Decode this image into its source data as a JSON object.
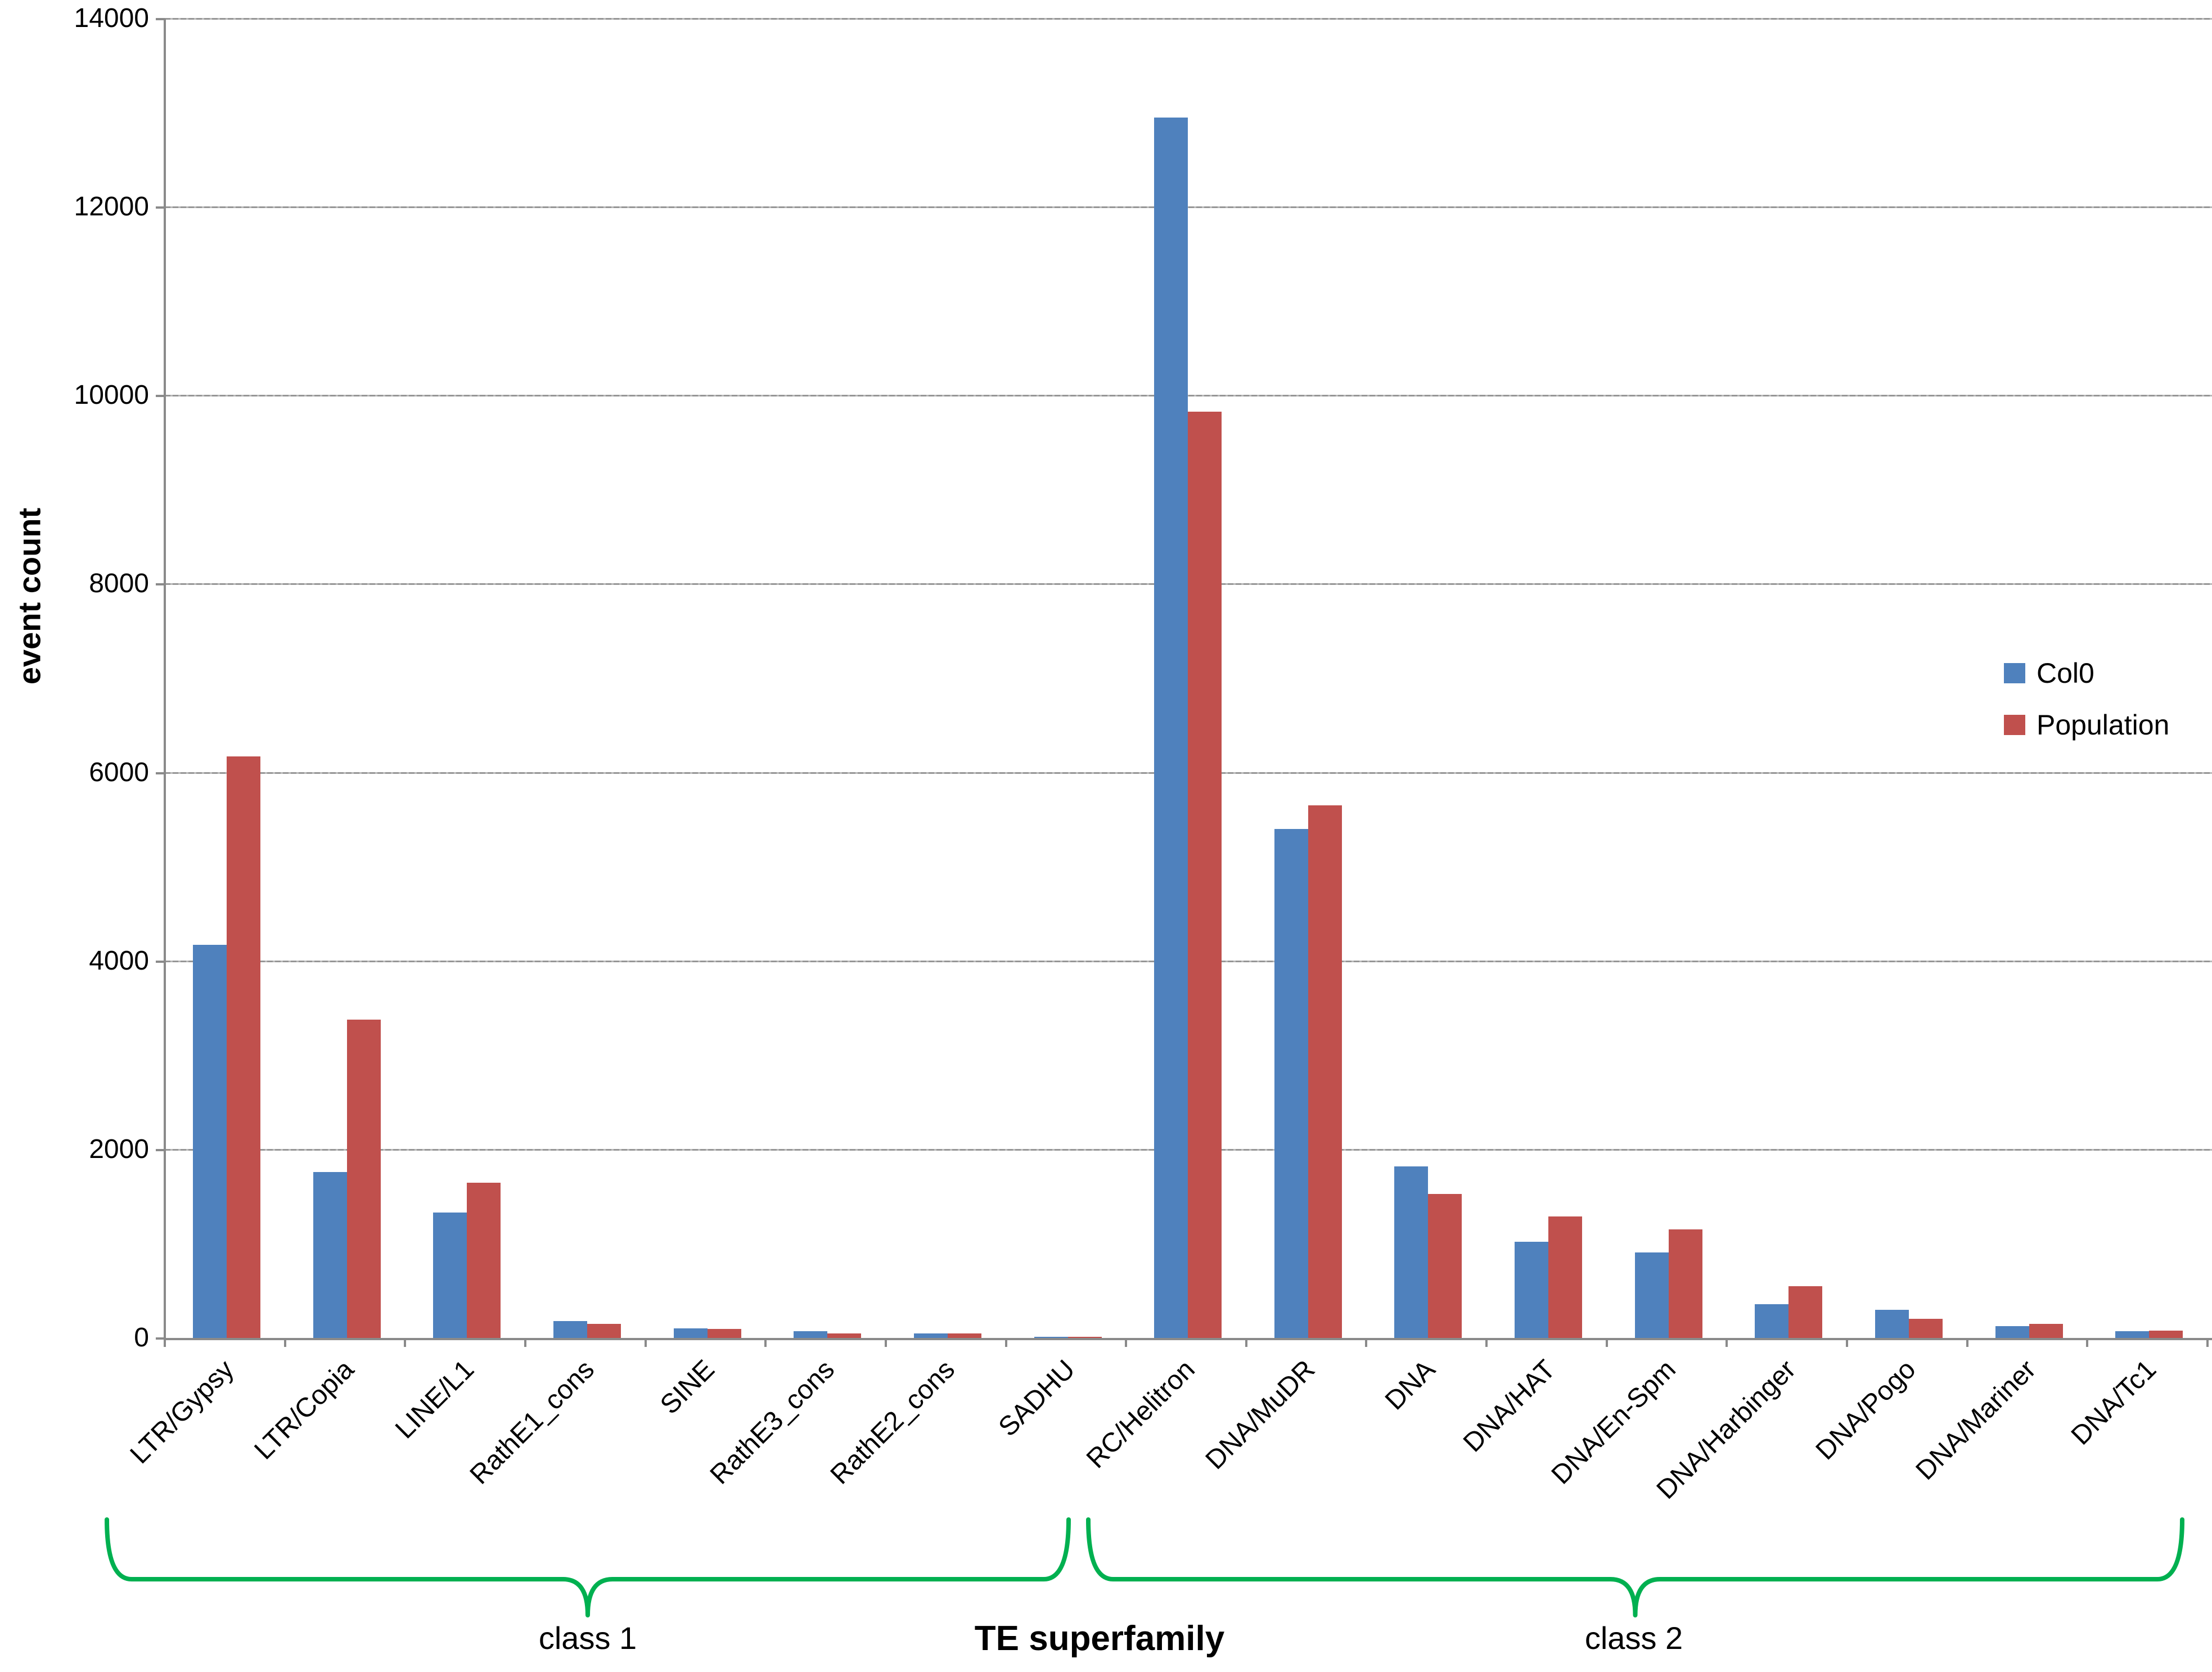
{
  "chart_data": {
    "type": "bar",
    "title": "",
    "categories": [
      "LTR/Gypsy",
      "LTR/Copia",
      "LINE/L1",
      "RathE1_cons",
      "SINE",
      "RathE3_cons",
      "RathE2_cons",
      "SADHU",
      "RC/Helitron",
      "DNA/MuDR",
      "DNA",
      "DNA/HAT",
      "DNA/En-Spm",
      "DNA/Harbinger",
      "DNA/Pogo",
      "DNA/Mariner",
      "DNA/Tc1"
    ],
    "series": [
      {
        "name": "Col0",
        "color": "#4F81BD",
        "values": [
          4170,
          1760,
          1330,
          180,
          100,
          70,
          50,
          10,
          12950,
          5400,
          1820,
          1020,
          910,
          360,
          300,
          125,
          70
        ]
      },
      {
        "name": "Population",
        "color": "#C0504D",
        "values": [
          6170,
          3380,
          1650,
          150,
          95,
          45,
          45,
          10,
          9830,
          5650,
          1530,
          1290,
          1150,
          550,
          200,
          150,
          80
        ]
      }
    ],
    "ylabel": "event count",
    "xlabel": "TE superfamily",
    "ylim": [
      0,
      14000
    ],
    "yticks": [
      0,
      2000,
      4000,
      6000,
      8000,
      10000,
      12000,
      14000
    ],
    "grid": true,
    "legend_position": "right",
    "class_groups": [
      {
        "label": "class 1",
        "from": "LTR/Gypsy",
        "to": "SADHU"
      },
      {
        "label": "class 2",
        "from": "RC/Helitron",
        "to": "DNA/Tc1"
      }
    ]
  },
  "annotations": {
    "brace_color": "#00B050"
  }
}
